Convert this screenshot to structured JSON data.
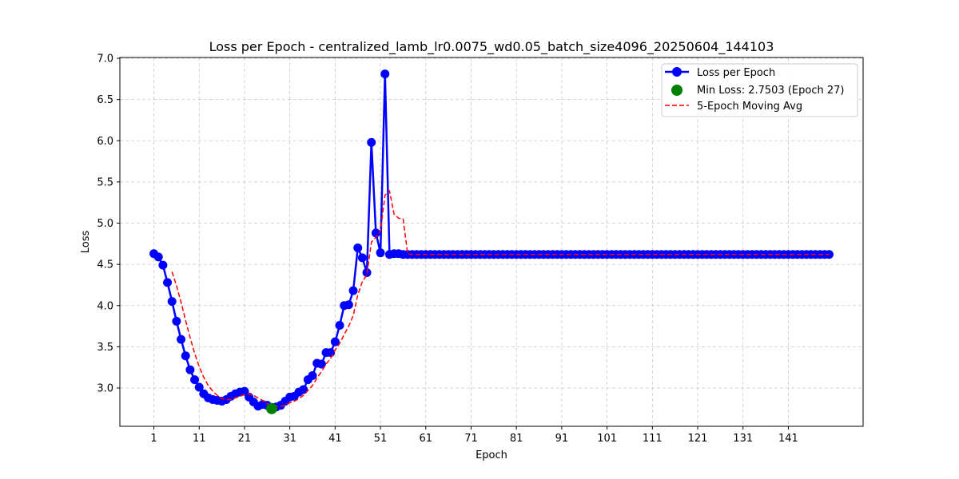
{
  "chart_data": {
    "type": "line",
    "title": "Loss per Epoch - centralized_lamb_lr0.0075_wd0.05_batch_size4096_20250604_144103",
    "xlabel": "Epoch",
    "ylabel": "Loss",
    "xlim": [
      -6.5,
      157.5
    ],
    "ylim": [
      2.535,
      7.01
    ],
    "x_ticks": [
      1,
      11,
      21,
      31,
      41,
      51,
      61,
      71,
      81,
      91,
      101,
      111,
      121,
      131,
      141
    ],
    "x_tick_labels": [
      "1",
      "11",
      "21",
      "31",
      "41",
      "51",
      "61",
      "71",
      "81",
      "91",
      "101",
      "111",
      "121",
      "131",
      "141"
    ],
    "y_ticks": [
      3.0,
      3.5,
      4.0,
      4.5,
      5.0,
      5.5,
      6.0,
      6.5,
      7.0
    ],
    "y_tick_labels": [
      "3.0",
      "3.5",
      "4.0",
      "4.5",
      "5.0",
      "5.5",
      "6.0",
      "6.5",
      "7.0"
    ],
    "grid": true,
    "legend_position": "top-right",
    "series": [
      {
        "name": "Loss per Epoch",
        "color": "#0000ff",
        "style": "line-with-circle-markers",
        "x": [
          1,
          2,
          3,
          4,
          5,
          6,
          7,
          8,
          9,
          10,
          11,
          12,
          13,
          14,
          15,
          16,
          17,
          18,
          19,
          20,
          21,
          22,
          23,
          24,
          25,
          26,
          27,
          28,
          29,
          30,
          31,
          32,
          33,
          34,
          35,
          36,
          37,
          38,
          39,
          40,
          41,
          42,
          43,
          44,
          45,
          46,
          47,
          48,
          49,
          50,
          51,
          52,
          53,
          54,
          55,
          56,
          57,
          58,
          59,
          60,
          61,
          62,
          63,
          64,
          65,
          66,
          67,
          68,
          69,
          70,
          71,
          72,
          73,
          74,
          75,
          76,
          77,
          78,
          79,
          80,
          81,
          82,
          83,
          84,
          85,
          86,
          87,
          88,
          89,
          90,
          91,
          92,
          93,
          94,
          95,
          96,
          97,
          98,
          99,
          100,
          101,
          102,
          103,
          104,
          105,
          106,
          107,
          108,
          109,
          110,
          111,
          112,
          113,
          114,
          115,
          116,
          117,
          118,
          119,
          120,
          121,
          122,
          123,
          124,
          125,
          126,
          127,
          128,
          129,
          130,
          131,
          132,
          133,
          134,
          135,
          136,
          137,
          138,
          139,
          140,
          141,
          142,
          143,
          144,
          145,
          146,
          147,
          148,
          149,
          150
        ],
        "y": [
          4.63,
          4.59,
          4.49,
          4.28,
          4.05,
          3.81,
          3.59,
          3.39,
          3.22,
          3.1,
          3.01,
          2.93,
          2.88,
          2.86,
          2.85,
          2.84,
          2.86,
          2.9,
          2.93,
          2.95,
          2.96,
          2.89,
          2.83,
          2.78,
          2.8,
          2.79,
          2.7503,
          2.77,
          2.79,
          2.84,
          2.89,
          2.9,
          2.95,
          2.98,
          3.1,
          3.15,
          3.3,
          3.29,
          3.43,
          3.43,
          3.56,
          3.76,
          4.0,
          4.01,
          4.18,
          4.7,
          4.58,
          4.4,
          5.98,
          4.88,
          4.64,
          6.81,
          4.62,
          4.63,
          4.63,
          4.62,
          4.62,
          4.62,
          4.62,
          4.62,
          4.62,
          4.62,
          4.62,
          4.62,
          4.62,
          4.62,
          4.62,
          4.62,
          4.62,
          4.62,
          4.62,
          4.62,
          4.62,
          4.62,
          4.62,
          4.62,
          4.62,
          4.62,
          4.62,
          4.62,
          4.62,
          4.62,
          4.62,
          4.62,
          4.62,
          4.62,
          4.62,
          4.62,
          4.62,
          4.62,
          4.62,
          4.62,
          4.62,
          4.62,
          4.62,
          4.62,
          4.62,
          4.62,
          4.62,
          4.62,
          4.62,
          4.62,
          4.62,
          4.62,
          4.62,
          4.62,
          4.62,
          4.62,
          4.62,
          4.62,
          4.62,
          4.62,
          4.62,
          4.62,
          4.62,
          4.62,
          4.62,
          4.62,
          4.62,
          4.62,
          4.62,
          4.62,
          4.62,
          4.62,
          4.62,
          4.62,
          4.62,
          4.62,
          4.62,
          4.62,
          4.62,
          4.62,
          4.62,
          4.62,
          4.62,
          4.62,
          4.62,
          4.62,
          4.62,
          4.62,
          4.62,
          4.62,
          4.62,
          4.62,
          4.62,
          4.62,
          4.62,
          4.62,
          4.62,
          4.62
        ]
      },
      {
        "name": "Min Loss: 2.7503 (Epoch 27)",
        "color": "#008000",
        "style": "single-point",
        "x": [
          27
        ],
        "y": [
          2.7503
        ]
      },
      {
        "name": "5-Epoch Moving Avg",
        "color": "#ff0000",
        "style": "dashed-line",
        "x": [
          5,
          6,
          7,
          8,
          9,
          10,
          11,
          12,
          13,
          14,
          15,
          16,
          17,
          18,
          19,
          20,
          21,
          22,
          23,
          24,
          25,
          26,
          27,
          28,
          29,
          30,
          31,
          32,
          33,
          34,
          35,
          36,
          37,
          38,
          39,
          40,
          41,
          42,
          43,
          44,
          45,
          46,
          47,
          48,
          49,
          50,
          51,
          52,
          53,
          54,
          55,
          56,
          57,
          58,
          59,
          60,
          61,
          62,
          63,
          64,
          65,
          66,
          67,
          68,
          69,
          70,
          71,
          72,
          73,
          74,
          75,
          76,
          77,
          78,
          79,
          80,
          81,
          82,
          83,
          84,
          85,
          86,
          87,
          88,
          89,
          90,
          91,
          92,
          93,
          94,
          95,
          96,
          97,
          98,
          99,
          100,
          101,
          102,
          103,
          104,
          105,
          106,
          107,
          108,
          109,
          110,
          111,
          112,
          113,
          114,
          115,
          116,
          117,
          118,
          119,
          120,
          121,
          122,
          123,
          124,
          125,
          126,
          127,
          128,
          129,
          130,
          131,
          132,
          133,
          134,
          135,
          136,
          137,
          138,
          139,
          140,
          141,
          142,
          143,
          144,
          145,
          146,
          147,
          148,
          149,
          150
        ],
        "y": [
          4.41,
          4.24,
          4.04,
          3.82,
          3.61,
          3.42,
          3.26,
          3.13,
          3.03,
          2.96,
          2.91,
          2.87,
          2.86,
          2.86,
          2.88,
          2.9,
          2.92,
          2.93,
          2.91,
          2.88,
          2.85,
          2.81,
          2.79,
          2.78,
          2.78,
          2.79,
          2.82,
          2.84,
          2.87,
          2.91,
          2.97,
          3.03,
          3.12,
          3.2,
          3.29,
          3.36,
          3.46,
          3.54,
          3.65,
          3.75,
          3.88,
          4.13,
          4.29,
          4.37,
          4.77,
          4.83,
          4.9,
          5.34,
          5.39,
          5.11,
          5.06,
          5.05,
          4.63,
          4.62,
          4.62,
          4.62,
          4.62,
          4.62,
          4.62,
          4.62,
          4.62,
          4.62,
          4.62,
          4.62,
          4.62,
          4.62,
          4.62,
          4.62,
          4.62,
          4.62,
          4.62,
          4.62,
          4.62,
          4.62,
          4.62,
          4.62,
          4.62,
          4.62,
          4.62,
          4.62,
          4.62,
          4.62,
          4.62,
          4.62,
          4.62,
          4.62,
          4.62,
          4.62,
          4.62,
          4.62,
          4.62,
          4.62,
          4.62,
          4.62,
          4.62,
          4.62,
          4.62,
          4.62,
          4.62,
          4.62,
          4.62,
          4.62,
          4.62,
          4.62,
          4.62,
          4.62,
          4.62,
          4.62,
          4.62,
          4.62,
          4.62,
          4.62,
          4.62,
          4.62,
          4.62,
          4.62,
          4.62,
          4.62,
          4.62,
          4.62,
          4.62,
          4.62,
          4.62,
          4.62,
          4.62,
          4.62,
          4.62,
          4.62,
          4.62,
          4.62,
          4.62,
          4.62,
          4.62,
          4.62,
          4.62,
          4.62,
          4.62,
          4.62,
          4.62,
          4.62,
          4.62,
          4.62,
          4.62,
          4.62,
          4.62,
          4.62
        ]
      }
    ]
  }
}
